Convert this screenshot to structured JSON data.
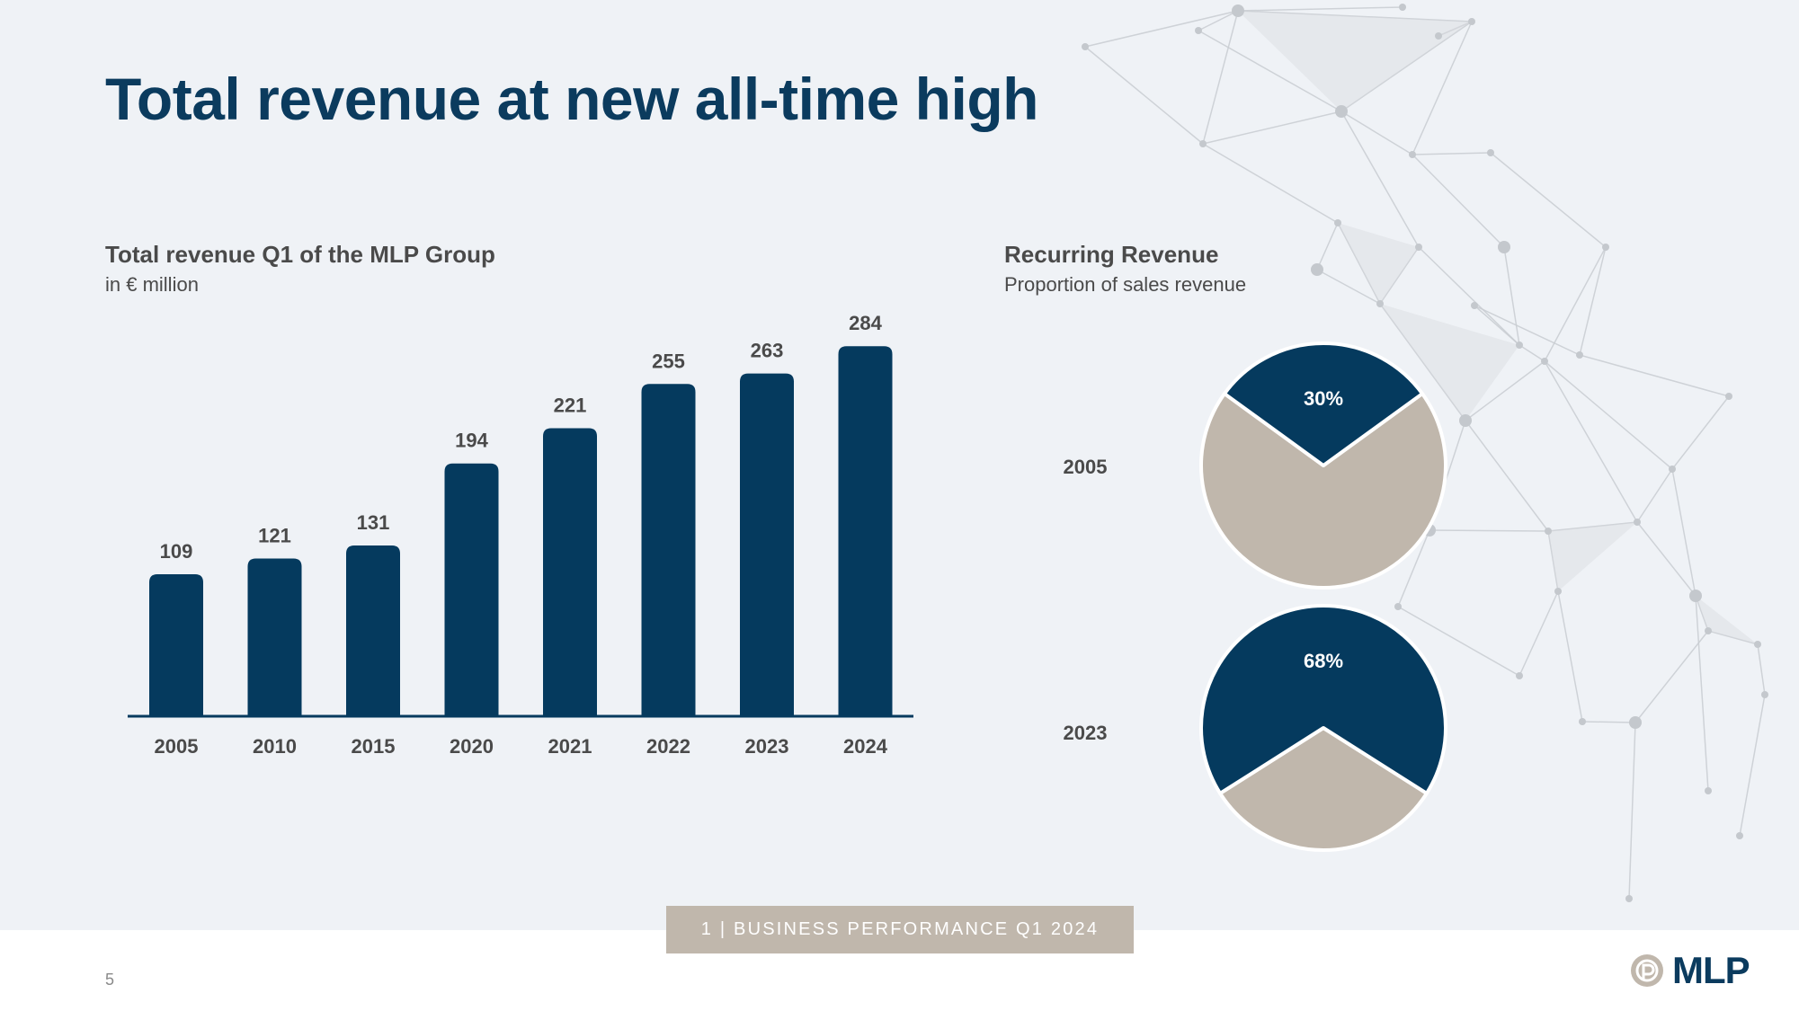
{
  "title": "Total revenue at new all-time high",
  "left_chart": {
    "heading": "Total revenue Q1 of the MLP Group",
    "subheading": "in € million"
  },
  "right_chart": {
    "heading": "Recurring Revenue",
    "subheading": "Proportion of sales revenue"
  },
  "chart_data": [
    {
      "type": "bar",
      "title": "Total revenue Q1 of the MLP Group",
      "subtitle": "in € million",
      "categories": [
        "2005",
        "2010",
        "2015",
        "2020",
        "2021",
        "2022",
        "2023",
        "2024"
      ],
      "values": [
        109,
        121,
        131,
        194,
        221,
        255,
        263,
        284
      ],
      "data_labels": [
        "109",
        "121",
        "131",
        "194",
        "221",
        "255",
        "263",
        "284"
      ],
      "grid": false,
      "colors": {
        "bar": "#053a5e",
        "axis": "#053a5e",
        "label": "#4a4a4a"
      }
    },
    {
      "type": "pie",
      "title": "Recurring Revenue",
      "subtitle": "Proportion of sales revenue",
      "pies": [
        {
          "label": "2005",
          "recurring_percent": 30,
          "value_label": "30%"
        },
        {
          "label": "2023",
          "recurring_percent": 68,
          "value_label": "68%"
        }
      ],
      "colors": {
        "recurring": "#053a5e",
        "other": "#c0b7ac"
      }
    }
  ],
  "footer": {
    "section_label": "1 | BUSINESS PERFORMANCE Q1 2024",
    "page_number": "5",
    "logo_text": "MLP"
  }
}
